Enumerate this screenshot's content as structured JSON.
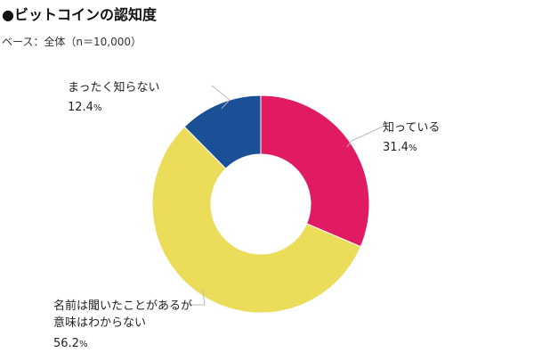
{
  "chart_data": {
    "type": "pie",
    "style": "donut",
    "title": "●ビットコインの認知度",
    "subtitle": "ベース：全体（n＝10,000）",
    "unit": "%",
    "slices": [
      {
        "label": "知っている",
        "label_lines": [
          "知っている"
        ],
        "value": 31.4,
        "color": "#e01a63"
      },
      {
        "label": "名前は聞いたことがあるが意味はわからない",
        "label_lines": [
          "名前は聞いたことがあるが",
          "意味はわからない"
        ],
        "value": 56.2,
        "color": "#ebdc5a"
      },
      {
        "label": "まったく知らない",
        "label_lines": [
          "まったく知らない"
        ],
        "value": 12.4,
        "color": "#1b4f96"
      }
    ]
  }
}
